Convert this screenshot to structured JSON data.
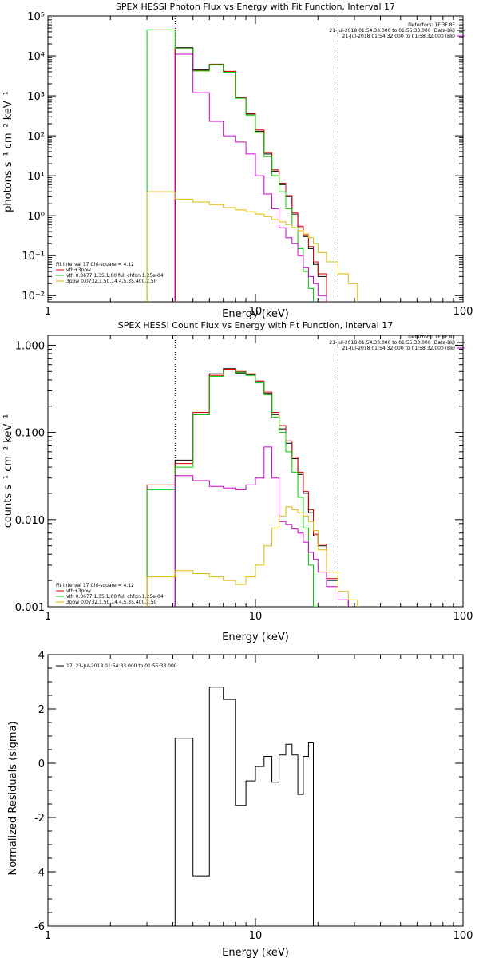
{
  "chart_data": [
    {
      "type": "line",
      "title": "SPEX HESSI Photon Flux vs Energy with Fit Function, Interval 17",
      "xlabel": "Energy (keV)",
      "ylabel": "photons s⁻¹ cm⁻² keV⁻¹",
      "xscale": "log",
      "yscale": "log",
      "xlim": [
        1,
        100
      ],
      "ylim": [
        0.007,
        100000
      ],
      "xticks": [
        "1",
        "10",
        "100"
      ],
      "yticks": [
        "10⁻²",
        "10⁻¹",
        "10⁰",
        "10¹",
        "10²",
        "10³",
        "10⁴",
        "10⁵"
      ],
      "ytick_values": [
        0.01,
        0.1,
        1,
        10,
        100,
        1000,
        10000,
        100000
      ],
      "vlines": [
        {
          "x": 4.1,
          "style": "dotted"
        },
        {
          "x": 25,
          "style": "dashed"
        }
      ],
      "legend_top_right": [
        {
          "text": "Detectors: 1F 3F 8F",
          "color": "#000000"
        },
        {
          "text": "21-Jul-2018 01:54:33.000 to 01:55:33.000 (Data-Bk)",
          "color": "#000000"
        },
        {
          "text": "21-Jul-2018 01:54:32.000 to 01:58:32.000 (Bk)",
          "color": "#cc00cc"
        }
      ],
      "legend_bottom_left": [
        {
          "text": "Fit Interval 17    Chi-square = 4.12",
          "color": "#000000"
        },
        {
          "text": "vth+3pow",
          "color": "#dd0000"
        },
        {
          "text": "vth 0.0677,1.35,1.00  full chfon 1.25e-04",
          "color": "#00cc00"
        },
        {
          "text": "3pow 0.0732,1.50,14.4,5.35,400,2.50",
          "color": "#ddbb00"
        }
      ],
      "bin_edges": [
        3.0,
        4.1,
        5.0,
        6.0,
        7.0,
        8.0,
        9.0,
        10.0,
        11.0,
        12.0,
        13.0,
        14.0,
        15.0,
        16.0,
        17.0,
        18.0,
        19.0,
        20.0,
        22.0,
        25.0,
        28.0,
        31.0
      ],
      "series": [
        {
          "role": "data-bk",
          "color": "#000000",
          "start_bin": 1,
          "values": [
            16000,
            4500,
            6000,
            4000,
            900,
            350,
            130,
            35,
            13,
            6,
            3,
            1.1,
            0.5,
            0.3,
            0.15,
            0.06,
            0.03
          ]
        },
        {
          "role": "model",
          "color": "#dd0000",
          "start_bin": 1,
          "values": [
            15000,
            4300,
            6200,
            4100,
            920,
            360,
            140,
            38,
            14,
            6.5,
            3.2,
            1.2,
            0.55,
            0.33,
            0.17,
            0.07,
            0.035
          ]
        },
        {
          "role": "thermal",
          "color": "#00cc00",
          "start_bin": 0,
          "values": [
            45000,
            15000,
            4200,
            6000,
            3900,
            870,
            330,
            120,
            30,
            10,
            4,
            1.5,
            0.5,
            0.15,
            0.04,
            0.015
          ]
        },
        {
          "role": "background",
          "color": "#cc00cc",
          "start_bin": 1,
          "values": [
            11000,
            1200,
            230,
            100,
            70,
            35,
            10,
            3.5,
            1.5,
            0.5,
            0.28,
            0.2,
            0.1,
            0.05,
            0.03,
            0.02,
            0.01
          ]
        },
        {
          "role": "power-law",
          "color": "#ddbb00",
          "start_bin": 0,
          "values": [
            4,
            2.6,
            2.2,
            1.9,
            1.6,
            1.4,
            1.25,
            1.1,
            0.95,
            0.8,
            0.7,
            0.6,
            0.5,
            0.42,
            0.35,
            0.28,
            0.2,
            0.12,
            0.07,
            0.035,
            0.02
          ]
        }
      ]
    },
    {
      "type": "line",
      "title": "SPEX HESSI Count Flux vs Energy with Fit Function, Interval 17",
      "xlabel": "Energy (keV)",
      "ylabel": "counts s⁻¹ cm⁻² keV⁻¹",
      "xscale": "log",
      "yscale": "log",
      "xlim": [
        1,
        100
      ],
      "ylim": [
        0.001,
        1.3
      ],
      "xticks": [
        "1",
        "10",
        "100"
      ],
      "yticks": [
        "0.001",
        "0.010",
        "0.100",
        "1.000"
      ],
      "ytick_values": [
        0.001,
        0.01,
        0.1,
        1.0
      ],
      "vlines": [
        {
          "x": 4.1,
          "style": "dotted"
        },
        {
          "x": 25,
          "style": "dashed"
        }
      ],
      "legend_top_right": [
        {
          "text": "Detectors: 1F 3F 8F",
          "color": "#000000"
        },
        {
          "text": "21-Jul-2018 01:54:33.000 to 01:55:33.000 (Data-Bk)",
          "color": "#000000"
        },
        {
          "text": "21-Jul-2018 01:54:32.000 to 01:58:32.000 (Bk)",
          "color": "#cc00cc"
        }
      ],
      "legend_bottom_left": [
        {
          "text": "Fit Interval 17    Chi-square = 4.12",
          "color": "#000000"
        },
        {
          "text": "vth+3pow",
          "color": "#dd0000"
        },
        {
          "text": "vth 0.0677,1.35,1.00  full chfon 1.25e-04",
          "color": "#00cc00"
        },
        {
          "text": "3pow 0.0732,1.50,14.4,5.35,400,2.50",
          "color": "#ddbb00"
        }
      ],
      "bin_edges": [
        3.0,
        4.1,
        5.0,
        6.0,
        7.0,
        8.0,
        9.0,
        10.0,
        11.0,
        12.0,
        13.0,
        14.0,
        15.0,
        16.0,
        17.0,
        18.0,
        19.0,
        20.0,
        22.0,
        25.0,
        28.0,
        31.0
      ],
      "series": [
        {
          "role": "data-bk",
          "color": "#000000",
          "start_bin": 1,
          "values": [
            0.048,
            0.16,
            0.47,
            0.54,
            0.48,
            0.46,
            0.38,
            0.28,
            0.16,
            0.11,
            0.075,
            0.05,
            0.033,
            0.02,
            0.012,
            0.0065,
            0.005,
            0.002
          ]
        },
        {
          "role": "model",
          "color": "#dd0000",
          "start_bin": 0,
          "values": [
            0.025,
            0.044,
            0.17,
            0.45,
            0.53,
            0.5,
            0.47,
            0.39,
            0.29,
            0.17,
            0.12,
            0.08,
            0.052,
            0.035,
            0.021,
            0.013,
            0.0068,
            0.0052,
            0.0021,
            0.0012
          ]
        },
        {
          "role": "thermal",
          "color": "#00cc00",
          "start_bin": 0,
          "values": [
            0.022,
            0.04,
            0.16,
            0.44,
            0.52,
            0.49,
            0.45,
            0.37,
            0.27,
            0.15,
            0.1,
            0.06,
            0.035,
            0.018,
            0.008,
            0.003,
            0.001
          ]
        },
        {
          "role": "background",
          "color": "#cc00cc",
          "start_bin": 1,
          "values": [
            0.032,
            0.028,
            0.024,
            0.023,
            0.022,
            0.025,
            0.03,
            0.068,
            0.03,
            0.0095,
            0.0088,
            0.0078,
            0.007,
            0.0055,
            0.0042,
            0.0035,
            0.0025,
            0.0017,
            0.0012
          ]
        },
        {
          "role": "power-law",
          "color": "#ddbb00",
          "start_bin": 0,
          "values": [
            0.0022,
            0.0026,
            0.0024,
            0.0022,
            0.002,
            0.0018,
            0.0022,
            0.003,
            0.005,
            0.008,
            0.011,
            0.014,
            0.013,
            0.012,
            0.011,
            0.0095,
            0.0075,
            0.0045,
            0.0025,
            0.0015,
            0.0012
          ]
        }
      ]
    },
    {
      "type": "line",
      "title": "",
      "xlabel": "Energy (keV)",
      "ylabel": "Normalized Residuals (sigma)",
      "xscale": "log",
      "yscale": "linear",
      "xlim": [
        1,
        100
      ],
      "ylim": [
        -6,
        4
      ],
      "xticks": [
        "1",
        "10",
        "100"
      ],
      "yticks": [
        "-6",
        "-4",
        "-2",
        "0",
        "2",
        "4"
      ],
      "ytick_values": [
        -6,
        -4,
        -2,
        0,
        2,
        4
      ],
      "legend_top_left": [
        {
          "text": "17. 21-Jul-2018 01:54:33.000 to 01:55:33.000",
          "color": "#000000"
        }
      ],
      "bin_edges": [
        4.1,
        5.0,
        6.0,
        7.0,
        8.0,
        9.0,
        10.0,
        11.0,
        12.0,
        13.0,
        14.0,
        15.0,
        16.0,
        17.0,
        18.0,
        19.0,
        20.0,
        22.0,
        25.0
      ],
      "series": [
        {
          "role": "residuals",
          "color": "#000000",
          "start_bin": 0,
          "values": [
            0.92,
            -4.15,
            2.8,
            2.35,
            -1.55,
            -0.65,
            -0.12,
            0.25,
            -0.7,
            0.3,
            0.7,
            0.3,
            -1.15,
            0.25,
            0.75
          ]
        }
      ]
    }
  ]
}
